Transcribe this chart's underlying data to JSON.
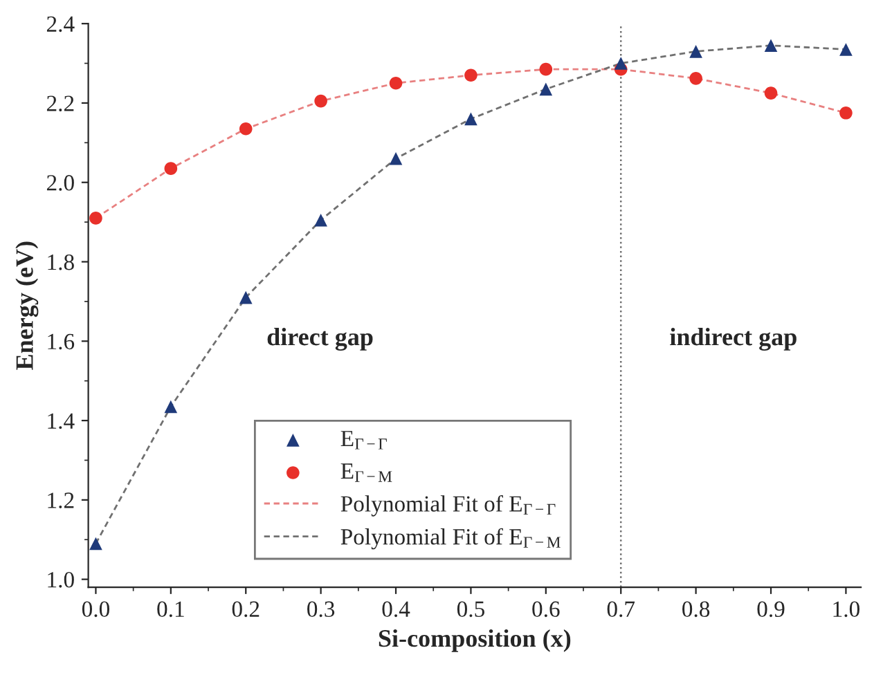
{
  "chart_data": {
    "type": "scatter",
    "xlabel": "Si-composition (x)",
    "ylabel": "Energy (eV)",
    "x": [
      0.0,
      0.1,
      0.2,
      0.3,
      0.4,
      0.5,
      0.6,
      0.7,
      0.8,
      0.9,
      1.0
    ],
    "series": [
      {
        "name": "E$_{Γ−Γ}$",
        "color": "#1f3a7a",
        "marker": "triangle",
        "values": [
          1.09,
          1.435,
          1.71,
          1.905,
          2.06,
          2.16,
          2.235,
          2.3,
          2.33,
          2.345,
          2.335
        ]
      },
      {
        "name": "E$_{Γ−M}$",
        "color": "#e8302a",
        "marker": "circle",
        "values": [
          1.91,
          2.035,
          2.135,
          2.205,
          2.25,
          2.27,
          2.285,
          2.285,
          2.262,
          2.225,
          2.175
        ]
      },
      {
        "name": "Polynomial Fit of E$_{Γ−Γ}$",
        "type": "line",
        "color": "#e88080",
        "line_style": "dashed",
        "values": [
          1.91,
          2.035,
          2.135,
          2.205,
          2.25,
          2.27,
          2.285,
          2.285,
          2.262,
          2.225,
          2.175
        ]
      },
      {
        "name": "Polynomial Fit of E$_{Γ−M}$",
        "type": "line",
        "color": "#707070",
        "line_style": "dashed",
        "values": [
          1.09,
          1.435,
          1.71,
          1.905,
          2.06,
          2.16,
          2.235,
          2.3,
          2.33,
          2.345,
          2.335
        ]
      }
    ],
    "xlim": [
      -0.01,
      1.02
    ],
    "ylim": [
      0.98,
      2.4
    ],
    "xticks": [
      {
        "value": 0.0,
        "label": "0.0"
      },
      0.1,
      0.2,
      0.3,
      0.4,
      0.5,
      0.6,
      0.7,
      0.8,
      0.9,
      {
        "value": 1.0,
        "label": "1.0"
      }
    ],
    "yticks": [
      {
        "value": 1.0,
        "label": "1.0"
      },
      1.2,
      1.4,
      1.6,
      1.8,
      {
        "value": 2.0,
        "label": "2.0"
      },
      2.2,
      2.4
    ],
    "ref_lines": [
      {
        "axis": "x",
        "value": 0.7,
        "color": "#707070",
        "line_style": "dotted"
      }
    ],
    "annotations": [
      "direct gap",
      "indirect gap"
    ],
    "legend": "bottom",
    "grid": false
  }
}
